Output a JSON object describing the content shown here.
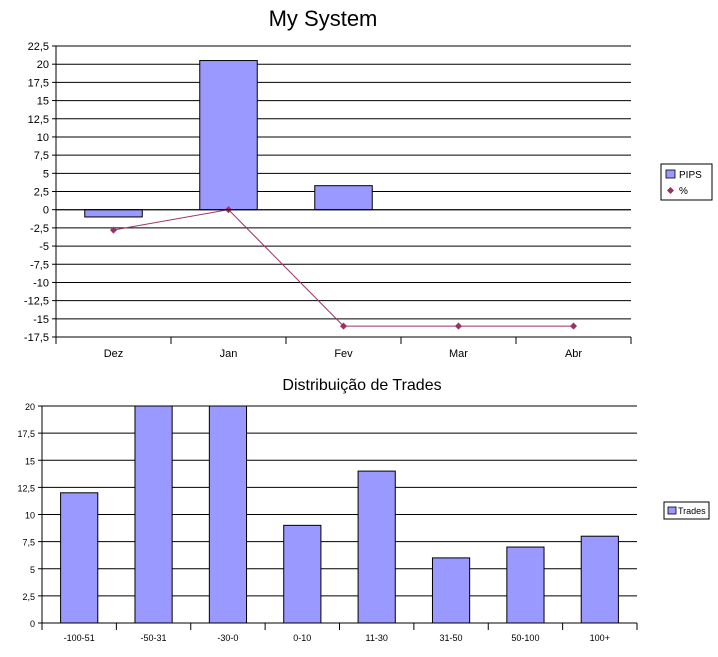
{
  "colors": {
    "bar": "#9999ff",
    "bar_stroke": "#000000",
    "line": "#993366",
    "grid": "#000000"
  },
  "chart_data": [
    {
      "type": "bar",
      "title": "My System",
      "categories": [
        "Dez",
        "Jan",
        "Fev",
        "Mar",
        "Abr"
      ],
      "ylim": [
        -17.5,
        22.5
      ],
      "ytick_step": 2.5,
      "ytick_labels": [
        "22,5",
        "20",
        "17,5",
        "15",
        "12,5",
        "10",
        "7,5",
        "5",
        "2,5",
        "0",
        "-2,5",
        "-5",
        "-7,5",
        "-10",
        "-12,5",
        "-15",
        "-17,5"
      ],
      "grid": true,
      "legend_position": "right",
      "series": [
        {
          "name": "PIPS",
          "kind": "bar",
          "values": [
            -1,
            20.5,
            3.3,
            0,
            0
          ]
        },
        {
          "name": "%",
          "kind": "line",
          "values": [
            -2.8,
            0,
            -16,
            -16,
            -16
          ]
        }
      ]
    },
    {
      "type": "bar",
      "title": "Distribuição de Trades",
      "categories": [
        "-100-51",
        "-50-31",
        "-30-0",
        "0-10",
        "11-30",
        "31-50",
        "50-100",
        "100+"
      ],
      "ylim": [
        0,
        20
      ],
      "ytick_step": 2.5,
      "ytick_labels": [
        "20",
        "17,5",
        "15",
        "12,5",
        "10",
        "7,5",
        "5",
        "2,5",
        "0"
      ],
      "grid": true,
      "legend_position": "right",
      "series": [
        {
          "name": "Trades",
          "kind": "bar",
          "values": [
            12,
            20,
            20,
            9,
            14,
            6,
            7,
            8
          ]
        }
      ]
    }
  ]
}
